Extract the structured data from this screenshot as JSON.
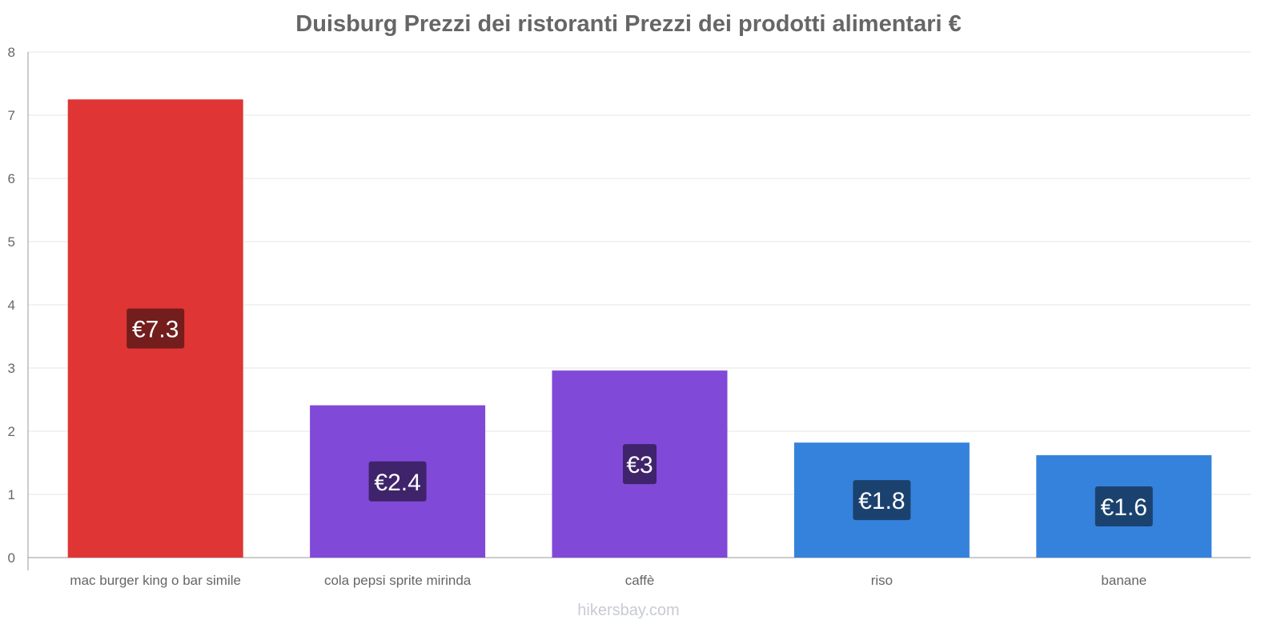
{
  "chart_data": {
    "type": "bar",
    "title": "Duisburg Prezzi dei ristoranti Prezzi dei prodotti alimentari €",
    "categories": [
      "mac burger king o bar simile",
      "cola pepsi sprite mirinda",
      "caffè",
      "riso",
      "banane"
    ],
    "values": [
      7.25,
      2.41,
      2.96,
      1.82,
      1.62
    ],
    "data_labels": [
      "€7.3",
      "€2.4",
      "€3",
      "€1.8",
      "€1.6"
    ],
    "colors": [
      "#e03535",
      "#8149d8",
      "#8149d8",
      "#3582dc",
      "#3582dc"
    ],
    "label_colors": [
      "#731d1d",
      "#3f246b",
      "#3f246b",
      "#1b426f",
      "#1b426f"
    ],
    "ylim": [
      0,
      8
    ],
    "yticks": [
      "0",
      "1",
      "2",
      "3",
      "4",
      "5",
      "6",
      "7",
      "8"
    ],
    "xlabel": "",
    "ylabel": "",
    "grid": true
  },
  "footer": "hikersbay.com"
}
